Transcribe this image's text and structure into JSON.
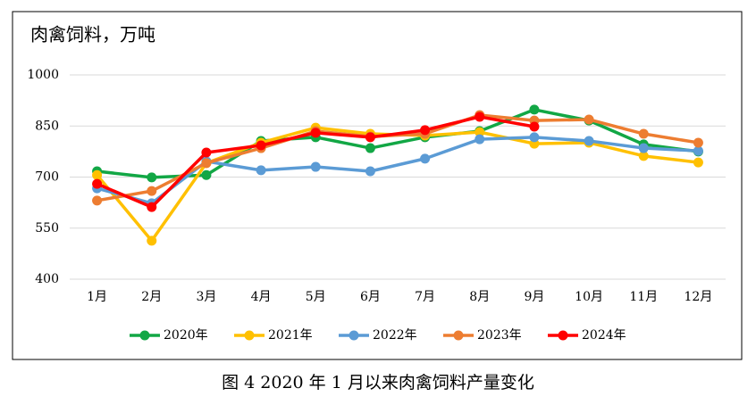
{
  "chart_data": {
    "type": "line",
    "title": "肉禽饲料，万吨",
    "caption": "图 4 2020 年 1 月以来肉禽饲料产量变化",
    "categories": [
      "1月",
      "2月",
      "3月",
      "4月",
      "5月",
      "6月",
      "7月",
      "8月",
      "9月",
      "10月",
      "11月",
      "12月"
    ],
    "series": [
      {
        "name": "2020年",
        "color": "#12a745",
        "values": [
          717,
          699,
          706,
          806,
          817,
          785,
          817,
          835,
          898,
          866,
          796,
          775
        ]
      },
      {
        "name": "2021年",
        "color": "#ffc000",
        "values": [
          706,
          513,
          741,
          801,
          845,
          827,
          822,
          832,
          798,
          801,
          762,
          743
        ]
      },
      {
        "name": "2022年",
        "color": "#5b9bd5",
        "values": [
          667,
          623,
          746,
          720,
          730,
          717,
          754,
          811,
          817,
          806,
          785,
          777
        ]
      },
      {
        "name": "2023年",
        "color": "#ed7d31",
        "values": [
          631,
          659,
          741,
          785,
          835,
          819,
          827,
          882,
          866,
          869,
          827,
          801
        ]
      },
      {
        "name": "2024年",
        "color": "#ff0000",
        "values": [
          680,
          612,
          772,
          793,
          830,
          817,
          838,
          877,
          848,
          null,
          null,
          null
        ]
      }
    ],
    "ylim": [
      400,
      1000
    ],
    "yticks": [
      400,
      550,
      700,
      850,
      1000
    ],
    "grid": true,
    "legend": "bottom"
  }
}
